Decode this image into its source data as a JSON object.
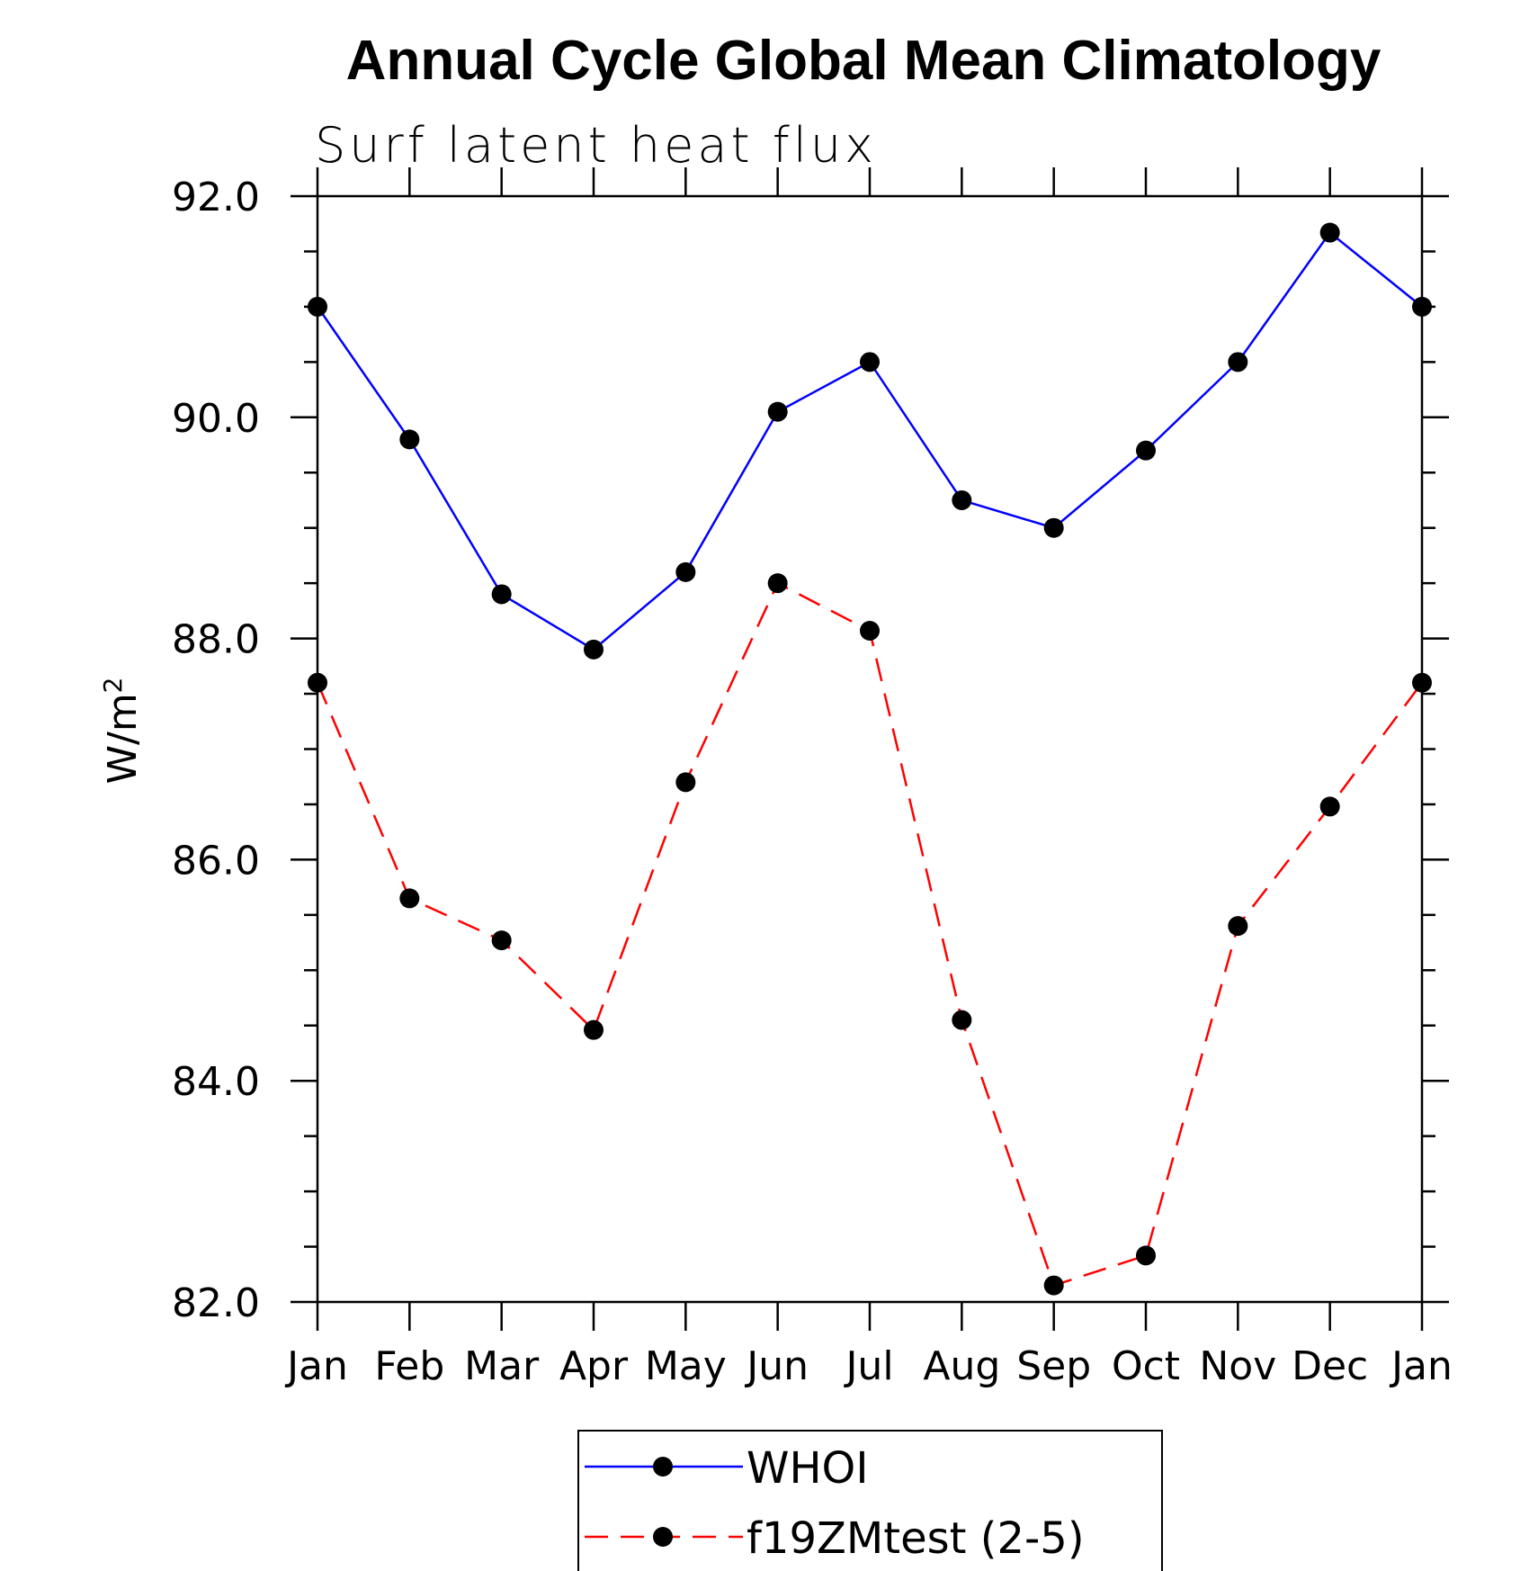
{
  "chart_data": {
    "type": "line",
    "title": "Annual Cycle Global Mean Climatology",
    "subtitle": "Surf latent heat flux",
    "xlabel": "",
    "ylabel": "W/m",
    "ylabel_superscript": "2",
    "categories": [
      "Jan",
      "Feb",
      "Mar",
      "Apr",
      "May",
      "Jun",
      "Jul",
      "Aug",
      "Sep",
      "Oct",
      "Nov",
      "Dec",
      "Jan"
    ],
    "ylim": [
      82.0,
      92.0
    ],
    "yticks": [
      "82.0",
      "84.0",
      "86.0",
      "88.0",
      "90.0",
      "92.0"
    ],
    "ytick_values": [
      82,
      84,
      86,
      88,
      90,
      92
    ],
    "yminor_step": 0.5,
    "grid": false,
    "legend_position": "bottom-center",
    "series": [
      {
        "name": "WHOI",
        "color": "#0000ff",
        "style": "solid",
        "marker": "dot",
        "values": [
          91.0,
          89.8,
          88.4,
          87.9,
          88.6,
          90.05,
          90.5,
          89.25,
          89.0,
          89.7,
          90.5,
          91.67,
          91.0
        ]
      },
      {
        "name": "f19ZMtest (2-5)",
        "color": "#ff0000",
        "style": "dashed",
        "marker": "dot",
        "values": [
          87.6,
          85.65,
          85.27,
          84.46,
          86.7,
          88.5,
          88.07,
          84.55,
          82.15,
          82.42,
          85.4,
          86.48,
          87.6
        ]
      }
    ]
  }
}
